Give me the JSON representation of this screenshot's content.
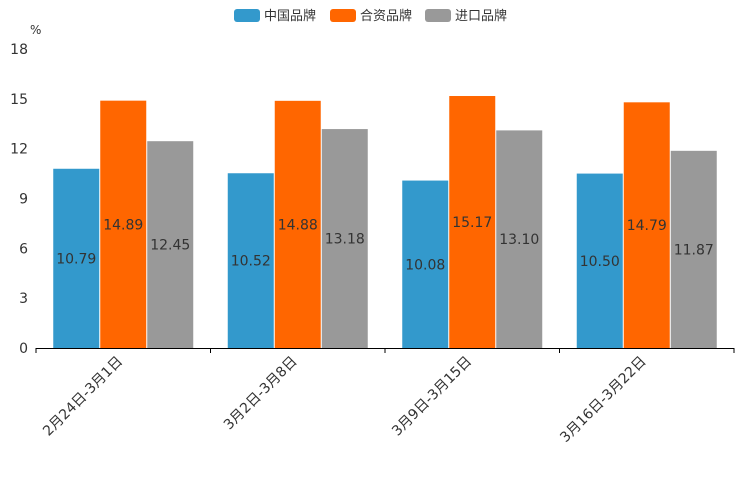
{
  "chart_data": {
    "type": "bar",
    "unit": "%",
    "categories": [
      "2月24日-3月1日",
      "3月2日-3月8日",
      "3月9日-3月15日",
      "3月16日-3月22日"
    ],
    "series": [
      {
        "name": "中国品牌",
        "color": "#3399cc",
        "values": [
          10.79,
          10.52,
          10.08,
          10.5
        ]
      },
      {
        "name": "合资品牌",
        "color": "#ff6600",
        "values": [
          14.89,
          14.88,
          15.17,
          14.79
        ]
      },
      {
        "name": "进口品牌",
        "color": "#999999",
        "values": [
          12.45,
          13.18,
          13.1,
          11.87
        ]
      }
    ],
    "ylim": [
      0,
      18
    ],
    "yticks": [
      "0",
      "3",
      "6",
      "9",
      "12",
      "15",
      "18"
    ],
    "legend_position": "top-center",
    "grid": false
  }
}
